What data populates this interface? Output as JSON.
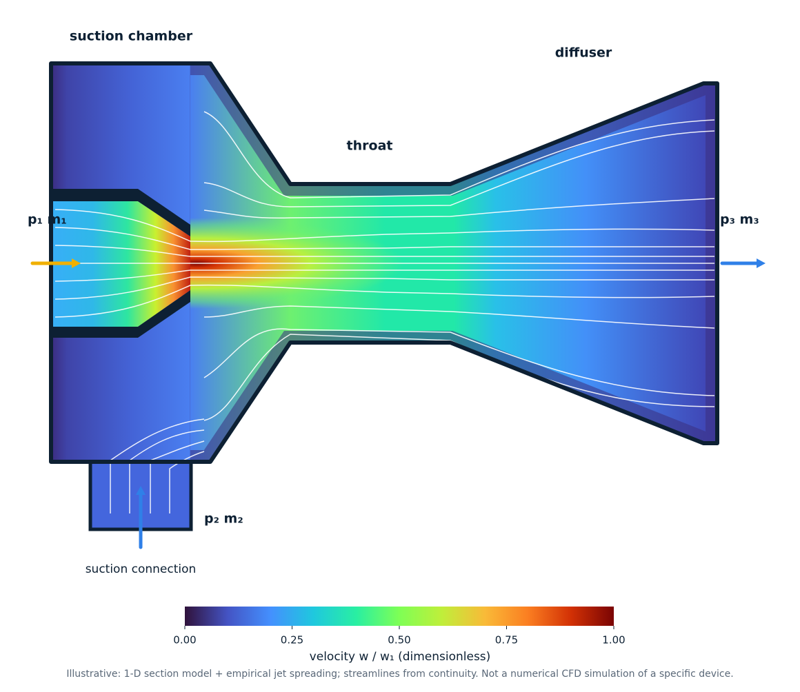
{
  "labels": {
    "suction_chamber": "suction chamber",
    "throat": "throat",
    "diffuser": "diffuser",
    "inlet_primary": "p₁  m₁",
    "outlet": "p₃  m₃",
    "inlet_suction": "p₂  m₂",
    "suction_connection": "suction connection"
  },
  "colorbar": {
    "label": "velocity w / w₁ (dimensionless)",
    "lim": [
      0,
      1
    ],
    "ticks": [
      {
        "value": 0,
        "label": "0.00"
      },
      {
        "value": 0.25,
        "label": "0.25"
      },
      {
        "value": 0.5,
        "label": "0.50"
      },
      {
        "value": 0.75,
        "label": "0.75"
      },
      {
        "value": 1,
        "label": "1.00"
      }
    ]
  },
  "footnote": "Illustrative: 1-D section model + empirical jet spreading; streamlines from continuity. Not a numerical CFD simulation of a specific device."
}
